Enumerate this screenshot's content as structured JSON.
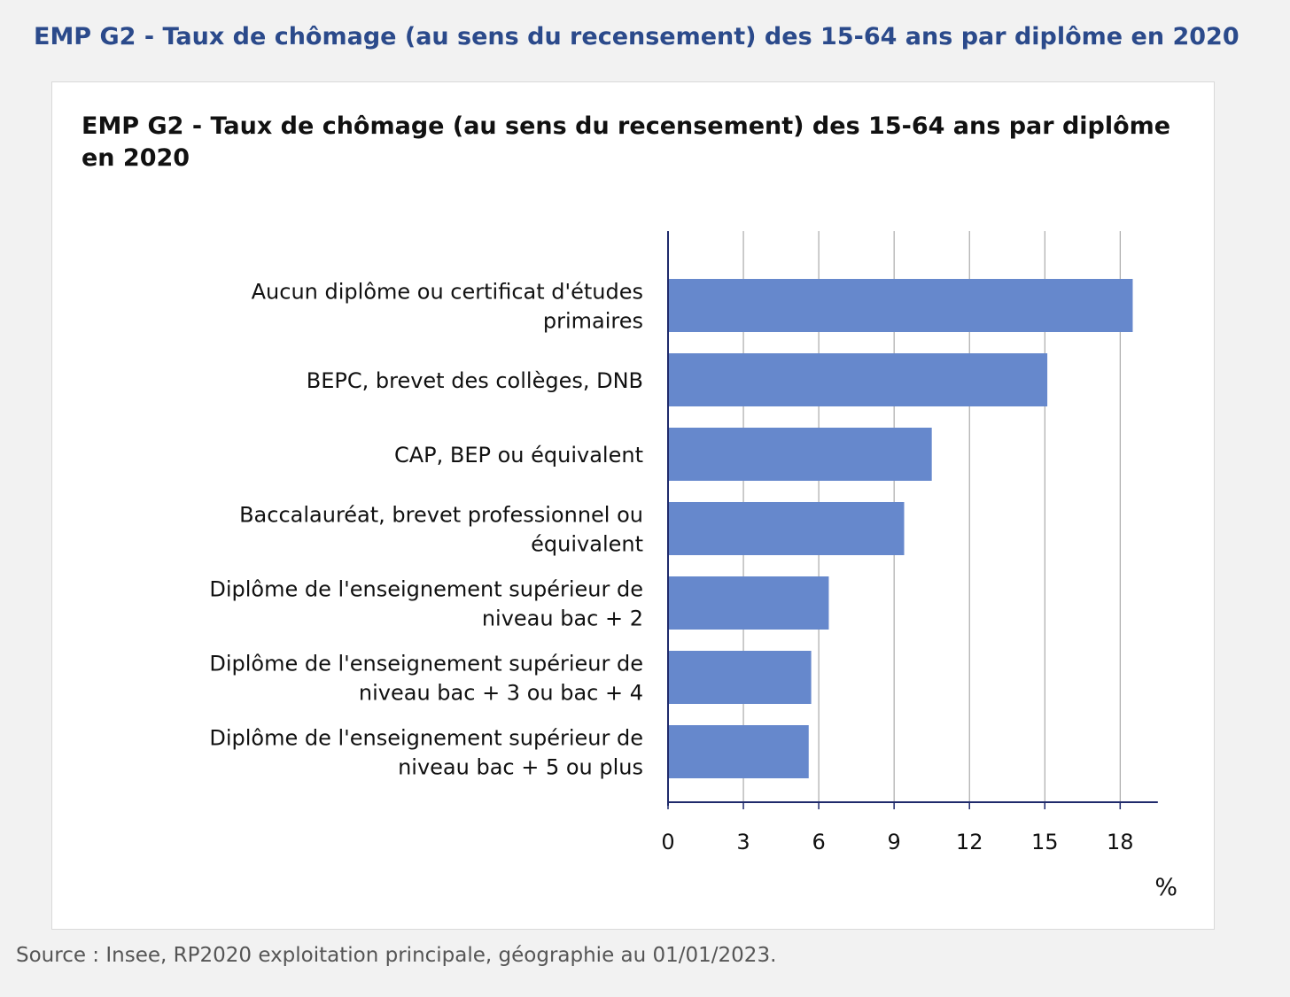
{
  "page": {
    "heading": "EMP G2 - Taux de chômage (au sens du recensement) des 15-64 ans par diplôme en 2020",
    "source": "Source : Insee, RP2020 exploitation principale, géographie au 01/01/2023."
  },
  "chart_data": {
    "type": "bar",
    "orientation": "horizontal",
    "title": "EMP G2 - Taux de chômage (au sens du recensement) des 15-64 ans par diplôme en 2020",
    "xlabel": "%",
    "ylabel": "",
    "xlim": [
      0,
      19.5
    ],
    "ticks": [
      "0",
      "3",
      "6",
      "9",
      "12",
      "15",
      "18"
    ],
    "grid": true,
    "bar_color": "#6688cc",
    "categories": [
      [
        "Aucun diplôme ou certificat d'études",
        "primaires"
      ],
      [
        "BEPC, brevet des collèges, DNB"
      ],
      [
        "CAP, BEP ou équivalent"
      ],
      [
        "Baccalauréat, brevet professionnel ou",
        "équivalent"
      ],
      [
        "Diplôme de l'enseignement supérieur de",
        "niveau bac + 2"
      ],
      [
        "Diplôme de l'enseignement supérieur de",
        "niveau bac + 3 ou bac + 4"
      ],
      [
        "Diplôme de l'enseignement supérieur de",
        "niveau bac + 5 ou plus"
      ]
    ],
    "values": [
      18.5,
      15.1,
      10.5,
      9.4,
      6.4,
      5.7,
      5.6
    ]
  }
}
